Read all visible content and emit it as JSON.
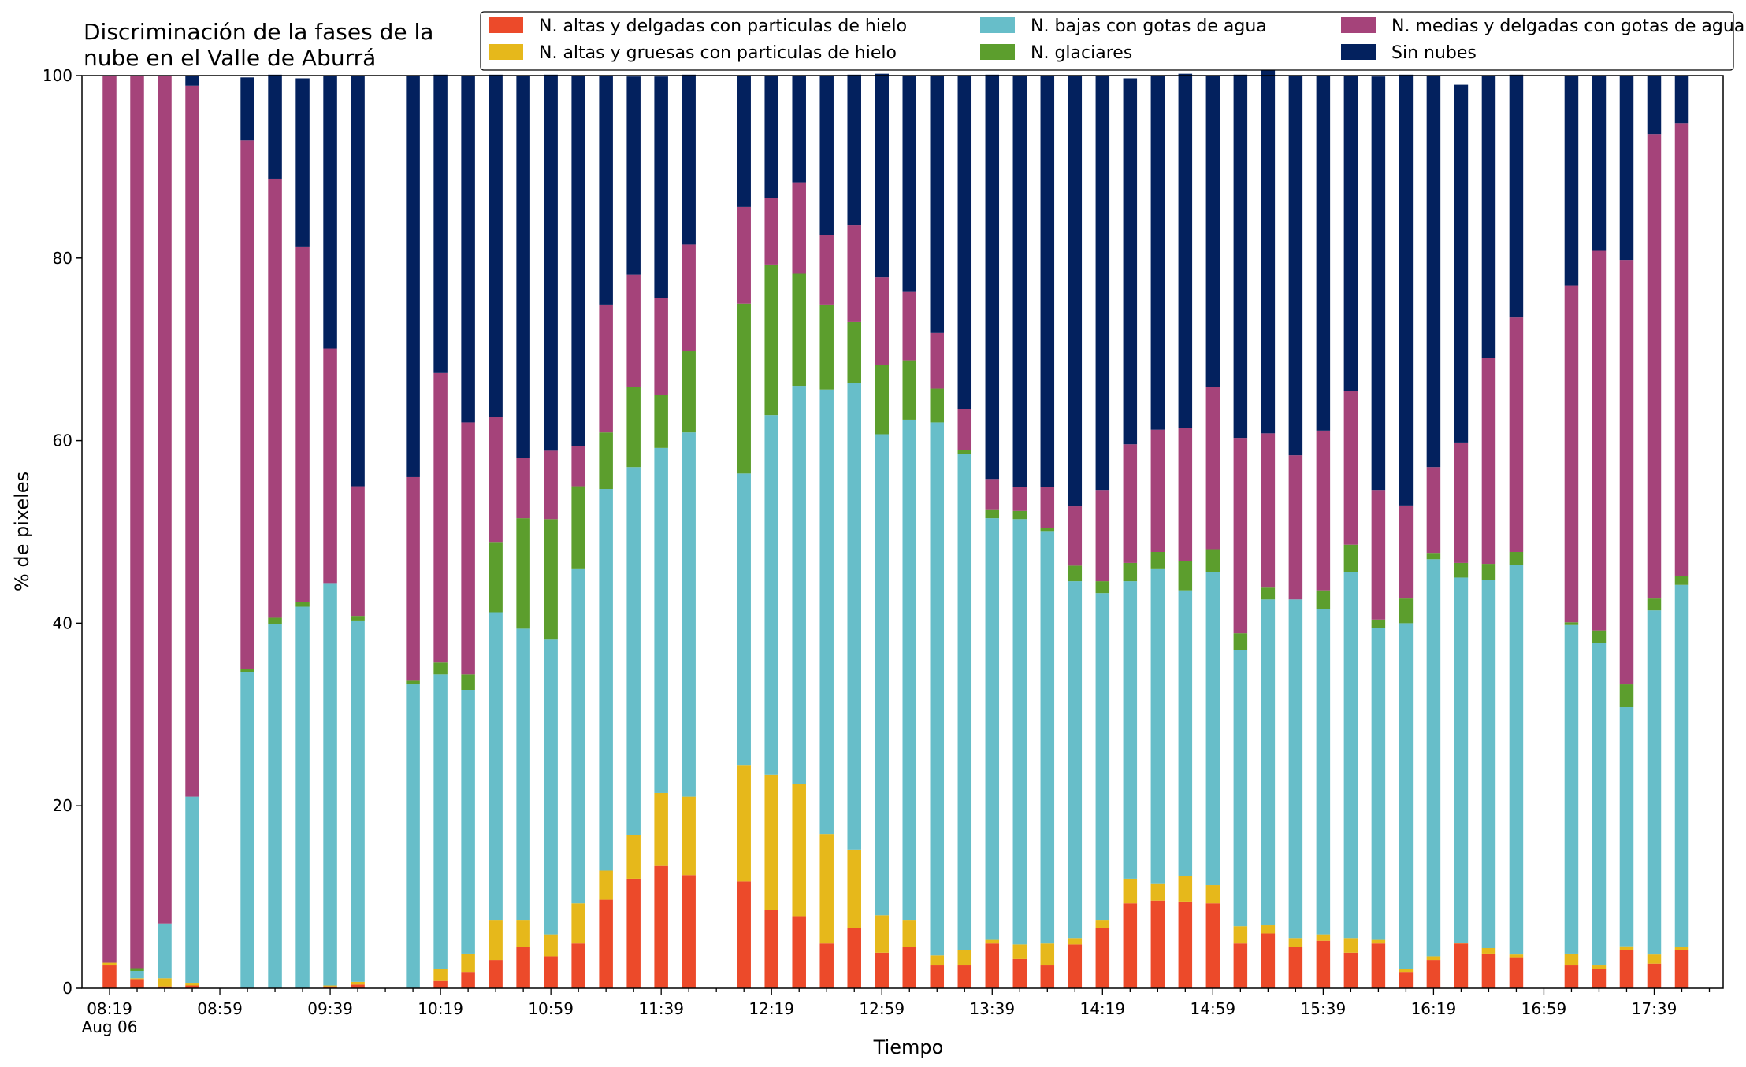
{
  "chart_data": {
    "type": "bar",
    "stacked": true,
    "title_lines": [
      "Discriminación de la fases de la",
      "nube en el Valle de Aburrá"
    ],
    "xlabel": "Tiempo",
    "ylabel": "% de pixeles",
    "ylim": [
      0,
      100
    ],
    "yticks": [
      0,
      20,
      40,
      60,
      80,
      100
    ],
    "xlim_minutes_after_0819": [
      -10,
      585
    ],
    "xtick_labels": [
      "08:19",
      "08:59",
      "09:39",
      "10:19",
      "10:59",
      "11:39",
      "12:19",
      "12:59",
      "13:39",
      "14:19",
      "14:59",
      "15:39",
      "16:19",
      "16:59",
      "17:39"
    ],
    "xtick_sublabel": "Aug 06",
    "bar_interval_minutes": 10,
    "grid": false,
    "legend_position": "top-right",
    "series": [
      {
        "name": "N. altas y delgadas con particulas de hielo",
        "color": "#ec4a2a",
        "values": [
          2.5,
          1,
          0.2,
          0.3,
          null,
          0,
          0,
          0,
          0.2,
          0.4,
          null,
          0,
          0.8,
          1.8,
          3.1,
          4.5,
          3.5,
          4.9,
          9.7,
          12,
          13.4,
          12.4,
          null,
          11.7,
          8.6,
          7.9,
          4.9,
          6.6,
          3.9,
          4.5,
          2.5,
          2.5,
          4.9,
          3.2,
          2.5,
          4.8,
          6.6,
          9.3,
          9.6,
          9.5,
          9.3,
          4.9,
          6,
          4.5,
          5.2,
          3.9,
          4.9,
          1.8,
          3.1,
          4.9,
          3.8,
          3.4,
          null,
          2.5,
          2.1,
          4.2,
          2.7,
          4.2
        ]
      },
      {
        "name": "N. altas y gruesas con particulas de hielo",
        "color": "#e6b81b",
        "values": [
          0.3,
          0.1,
          0.9,
          0.3,
          null,
          0,
          0,
          0,
          0.1,
          0.3,
          null,
          0,
          1.3,
          2,
          4.4,
          3,
          2.4,
          4.4,
          3.2,
          4.8,
          8,
          8.6,
          null,
          12.7,
          14.8,
          14.5,
          12,
          8.6,
          4.1,
          3,
          1.1,
          1.7,
          0.4,
          1.6,
          2.4,
          0.7,
          0.9,
          2.7,
          1.9,
          2.8,
          2,
          1.9,
          0.9,
          1,
          0.7,
          1.6,
          0.4,
          0.3,
          0.4,
          0.1,
          0.6,
          0.3,
          null,
          1.3,
          0.4,
          0.4,
          1,
          0.3
        ]
      },
      {
        "name": "N. bajas con gotas de agua",
        "color": "#67bec9",
        "values": [
          0,
          0.8,
          6,
          20.4,
          null,
          34.6,
          39.9,
          41.8,
          44.1,
          39.6,
          null,
          33.3,
          32.3,
          28.9,
          33.7,
          31.9,
          32.3,
          36.7,
          41.8,
          40.3,
          37.8,
          39.9,
          null,
          32,
          39.4,
          43.6,
          48.7,
          51.1,
          52.7,
          54.8,
          58.4,
          54.3,
          46.2,
          46.6,
          45.2,
          39.1,
          35.8,
          32.6,
          34.5,
          31.3,
          34.3,
          30.3,
          35.7,
          37.1,
          35.6,
          40.1,
          34.2,
          37.9,
          43.5,
          40,
          40.3,
          42.7,
          null,
          36,
          35.3,
          26.2,
          37.7,
          39.7
        ]
      },
      {
        "name": "N. glaciares",
        "color": "#5c9e2d",
        "values": [
          0,
          0.3,
          0,
          0,
          null,
          0.4,
          0.7,
          0.5,
          0,
          0.5,
          null,
          0.4,
          1.3,
          1.7,
          7.7,
          12.1,
          13.2,
          9,
          6.2,
          8.8,
          5.8,
          8.9,
          null,
          18.6,
          16.5,
          12.3,
          9.3,
          6.7,
          7.6,
          6.5,
          3.7,
          0.5,
          0.9,
          0.9,
          0.3,
          1.7,
          1.3,
          2,
          1.8,
          3.2,
          2.5,
          1.8,
          1.3,
          0,
          2.1,
          3,
          0.9,
          2.7,
          0.7,
          1.6,
          1.8,
          1.4,
          null,
          0.3,
          1.4,
          2.5,
          1.3,
          1
        ]
      },
      {
        "name": "N. medias y delgadas con gotas de agua",
        "color": "#a5437a",
        "values": [
          97.2,
          97.8,
          92.9,
          77.9,
          null,
          57.9,
          48.1,
          38.9,
          25.7,
          14.2,
          null,
          22.3,
          31.7,
          27.6,
          13.7,
          6.6,
          7.5,
          4.4,
          14,
          12.3,
          10.6,
          11.7,
          null,
          10.6,
          7.3,
          10,
          7.6,
          10.6,
          9.6,
          7.5,
          6.1,
          4.5,
          3.4,
          2.6,
          4.5,
          6.5,
          10,
          13,
          13.4,
          14.6,
          17.8,
          21.4,
          16.9,
          15.8,
          17.5,
          16.8,
          14.2,
          10.2,
          9.4,
          13.2,
          22.6,
          25.7,
          null,
          36.9,
          41.6,
          46.5,
          50.9,
          49.6
        ]
      },
      {
        "name": "Sin nubes",
        "color": "#03215e",
        "values": [
          0,
          0,
          0,
          1.1,
          null,
          6.9,
          11.4,
          18.5,
          29.9,
          45,
          null,
          44,
          32.7,
          38,
          37.5,
          41.9,
          41.2,
          40.6,
          25.1,
          21.7,
          24.3,
          18.6,
          null,
          14.4,
          13.4,
          11.7,
          17.5,
          16.5,
          22.3,
          23.7,
          28.2,
          36.5,
          44.3,
          45.1,
          45.1,
          47.2,
          45.4,
          40.1,
          38.8,
          38.8,
          34.1,
          39.8,
          40.2,
          41.6,
          38.9,
          34.6,
          45.3,
          47.2,
          42.9,
          39.2,
          30.9,
          26.6,
          null,
          23,
          19.2,
          20.2,
          6.4,
          5.2
        ]
      }
    ]
  },
  "legend_columns": [
    [
      0,
      1
    ],
    [
      2,
      3
    ],
    [
      4,
      5
    ]
  ]
}
